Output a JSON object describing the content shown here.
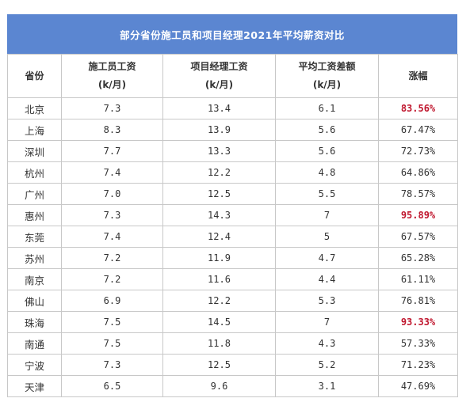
{
  "title": "部分省份施工员和项目经理2021年平均薪资对比",
  "headers": {
    "province": "省份",
    "worker": "施工员工资",
    "worker_unit": "(k/月)",
    "manager": "项目经理工资",
    "manager_unit": "(k/月)",
    "diff": "平均工资差额",
    "diff_unit": "(k/月)",
    "growth": "涨幅"
  },
  "highlight_color": "#c0172e",
  "rows": [
    {
      "province": "北京",
      "worker": "7.3",
      "manager": "13.4",
      "diff": "6.1",
      "growth": "83.56%",
      "highlight": true
    },
    {
      "province": "上海",
      "worker": "8.3",
      "manager": "13.9",
      "diff": "5.6",
      "growth": "67.47%",
      "highlight": false
    },
    {
      "province": "深圳",
      "worker": "7.7",
      "manager": "13.3",
      "diff": "5.6",
      "growth": "72.73%",
      "highlight": false
    },
    {
      "province": "杭州",
      "worker": "7.4",
      "manager": "12.2",
      "diff": "4.8",
      "growth": "64.86%",
      "highlight": false
    },
    {
      "province": "广州",
      "worker": "7.0",
      "manager": "12.5",
      "diff": "5.5",
      "growth": "78.57%",
      "highlight": false
    },
    {
      "province": "惠州",
      "worker": "7.3",
      "manager": "14.3",
      "diff": "7",
      "growth": "95.89%",
      "highlight": true
    },
    {
      "province": "东莞",
      "worker": "7.4",
      "manager": "12.4",
      "diff": "5",
      "growth": "67.57%",
      "highlight": false
    },
    {
      "province": "苏州",
      "worker": "7.2",
      "manager": "11.9",
      "diff": "4.7",
      "growth": "65.28%",
      "highlight": false
    },
    {
      "province": "南京",
      "worker": "7.2",
      "manager": "11.6",
      "diff": "4.4",
      "growth": "61.11%",
      "highlight": false
    },
    {
      "province": "佛山",
      "worker": "6.9",
      "manager": "12.2",
      "diff": "5.3",
      "growth": "76.81%",
      "highlight": false
    },
    {
      "province": "珠海",
      "worker": "7.5",
      "manager": "14.5",
      "diff": "7",
      "growth": "93.33%",
      "highlight": true
    },
    {
      "province": "南通",
      "worker": "7.5",
      "manager": "11.8",
      "diff": "4.3",
      "growth": "57.33%",
      "highlight": false
    },
    {
      "province": "宁波",
      "worker": "7.3",
      "manager": "12.5",
      "diff": "5.2",
      "growth": "71.23%",
      "highlight": false
    },
    {
      "province": "天津",
      "worker": "6.5",
      "manager": "9.6",
      "diff": "3.1",
      "growth": "47.69%",
      "highlight": false
    }
  ]
}
